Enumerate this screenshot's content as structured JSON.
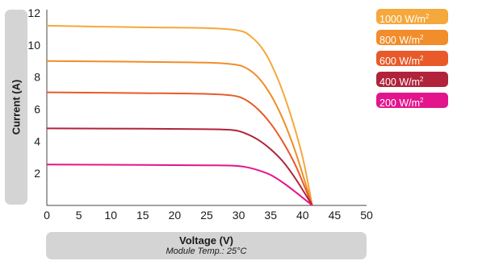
{
  "chart_data": {
    "type": "line",
    "xlabel": "Voltage (V)",
    "subtitle": "Module Temp.: 25°C",
    "ylabel": "Current (A)",
    "xlim": [
      0,
      50
    ],
    "ylim": [
      0,
      12
    ],
    "xticks": [
      "0",
      "5",
      "10",
      "15",
      "20",
      "25",
      "30",
      "35",
      "40",
      "45",
      "50"
    ],
    "yticks": [
      "2",
      "4",
      "6",
      "8",
      "10",
      "12"
    ],
    "legend_position": "right",
    "series": [
      {
        "name": "1000 W/m",
        "color": "#f5a83c",
        "points": [
          [
            0,
            11.2
          ],
          [
            15,
            11.1
          ],
          [
            25,
            11.05
          ],
          [
            30,
            10.9
          ],
          [
            32,
            10.5
          ],
          [
            34,
            9.6
          ],
          [
            36,
            8.0
          ],
          [
            38,
            5.8
          ],
          [
            40,
            3.0
          ],
          [
            41.5,
            0
          ]
        ]
      },
      {
        "name": "800 W/m",
        "color": "#f18d2a",
        "points": [
          [
            0,
            9.0
          ],
          [
            15,
            8.95
          ],
          [
            25,
            8.9
          ],
          [
            29,
            8.8
          ],
          [
            31,
            8.6
          ],
          [
            33,
            8.0
          ],
          [
            35,
            6.9
          ],
          [
            37,
            5.3
          ],
          [
            39,
            3.2
          ],
          [
            41.5,
            0
          ]
        ]
      },
      {
        "name": "600 W/m",
        "color": "#e85a2a",
        "points": [
          [
            0,
            7.05
          ],
          [
            15,
            7.0
          ],
          [
            25,
            6.95
          ],
          [
            29,
            6.85
          ],
          [
            31,
            6.6
          ],
          [
            33,
            6.0
          ],
          [
            35,
            5.1
          ],
          [
            37,
            3.9
          ],
          [
            39,
            2.4
          ],
          [
            41.5,
            0
          ]
        ]
      },
      {
        "name": "400 W/m",
        "color": "#b0233a",
        "points": [
          [
            0,
            4.8
          ],
          [
            15,
            4.78
          ],
          [
            25,
            4.75
          ],
          [
            29,
            4.7
          ],
          [
            31,
            4.5
          ],
          [
            33,
            4.1
          ],
          [
            35,
            3.5
          ],
          [
            37,
            2.7
          ],
          [
            39,
            1.6
          ],
          [
            41.5,
            0
          ]
        ]
      },
      {
        "name": "200 W/m",
        "color": "#e3158c",
        "points": [
          [
            0,
            2.55
          ],
          [
            15,
            2.52
          ],
          [
            25,
            2.5
          ],
          [
            29,
            2.48
          ],
          [
            31,
            2.4
          ],
          [
            33,
            2.2
          ],
          [
            35,
            1.9
          ],
          [
            37,
            1.4
          ],
          [
            39,
            0.8
          ],
          [
            41.5,
            0
          ]
        ]
      }
    ]
  }
}
